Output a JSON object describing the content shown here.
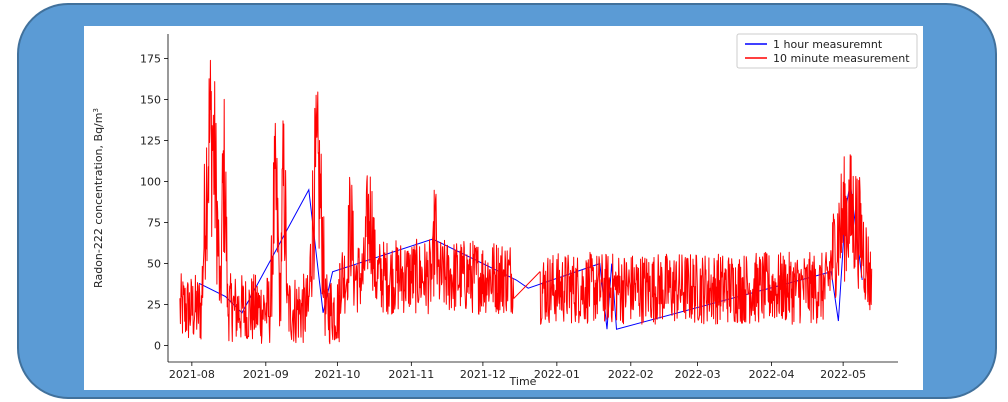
{
  "colors": {
    "frame_fill": "#5b9bd5",
    "frame_stroke": "#41719c",
    "plot_bg": "#ffffff",
    "series_1hour": "#0000ff",
    "series_10min": "#ff0000"
  },
  "chart_data": {
    "type": "line",
    "title": "",
    "xlabel": "Time",
    "ylabel": "Radon-222 concentration, Bq/m",
    "ylabel_superscript": "3",
    "ylim": [
      -10,
      190
    ],
    "yticks": [
      0,
      25,
      50,
      75,
      100,
      125,
      150,
      175
    ],
    "xticks": [
      "2021-08",
      "2021-09",
      "2021-10",
      "2021-11",
      "2021-12",
      "2022-01",
      "2022-02",
      "2022-03",
      "2022-04",
      "2022-05"
    ],
    "xlim": [
      "2021-07-22",
      "2022-05-24"
    ],
    "grid": false,
    "legend_position": "top-right",
    "series": [
      {
        "name": "1 hour measuremnt",
        "color": "#0000ff",
        "points": [
          [
            "2021-08-04",
            38
          ],
          [
            "2021-08-15",
            30
          ],
          [
            "2021-08-22",
            20
          ],
          [
            "2021-09-19",
            95
          ],
          [
            "2021-09-25",
            20
          ],
          [
            "2021-09-29",
            45
          ],
          [
            "2021-11-10",
            65
          ],
          [
            "2021-12-15",
            40
          ],
          [
            "2021-12-20",
            35
          ],
          [
            "2022-01-19",
            50
          ],
          [
            "2022-01-22",
            10
          ],
          [
            "2022-01-24",
            50
          ],
          [
            "2022-01-26",
            10
          ],
          [
            "2022-04-26",
            45
          ],
          [
            "2022-04-29",
            15
          ],
          [
            "2022-05-02",
            83
          ],
          [
            "2022-05-04",
            99
          ],
          [
            "2022-05-09",
            40
          ]
        ]
      },
      {
        "name": "10 minute measurement",
        "color": "#ff0000",
        "segments": [
          {
            "start": "2021-07-27",
            "end": "2021-10-02",
            "base": 22,
            "amp": 22,
            "bursts": [
              [
                "2021-08-05",
                "2021-08-13",
                165
              ],
              [
                "2021-08-13",
                "2021-08-16",
                130
              ],
              [
                "2021-09-03",
                "2021-09-07",
                110
              ],
              [
                "2021-09-07",
                "2021-09-10",
                120
              ],
              [
                "2021-09-19",
                "2021-09-26",
                130
              ]
            ]
          },
          {
            "start": "2021-10-02",
            "end": "2021-12-14",
            "base": 42,
            "amp": 23,
            "bursts": [
              [
                "2021-10-05",
                "2021-10-08",
                85
              ],
              [
                "2021-10-12",
                "2021-10-17",
                90
              ],
              [
                "2021-11-10",
                "2021-11-12",
                80
              ]
            ]
          },
          {
            "start": "2021-12-25",
            "end": "2022-05-13",
            "base": 35,
            "amp": 22,
            "bursts": [
              [
                "2022-04-24",
                "2022-05-13",
                95
              ]
            ]
          }
        ]
      }
    ]
  }
}
